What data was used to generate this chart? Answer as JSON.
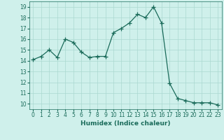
{
  "x": [
    0,
    1,
    2,
    3,
    4,
    5,
    6,
    7,
    8,
    9,
    10,
    11,
    12,
    13,
    14,
    15,
    16,
    17,
    18,
    19,
    20,
    21,
    22,
    23
  ],
  "y": [
    14.1,
    14.4,
    15.0,
    14.3,
    16.0,
    15.7,
    14.8,
    14.3,
    14.4,
    14.4,
    16.6,
    17.0,
    17.5,
    18.3,
    18.0,
    19.0,
    17.5,
    11.9,
    10.5,
    10.3,
    10.1,
    10.1,
    10.1,
    9.9
  ],
  "xlabel": "Humidex (Indice chaleur)",
  "xlim": [
    -0.5,
    23.5
  ],
  "ylim": [
    9.5,
    19.5
  ],
  "yticks": [
    10,
    11,
    12,
    13,
    14,
    15,
    16,
    17,
    18,
    19
  ],
  "xticks": [
    0,
    1,
    2,
    3,
    4,
    5,
    6,
    7,
    8,
    9,
    10,
    11,
    12,
    13,
    14,
    15,
    16,
    17,
    18,
    19,
    20,
    21,
    22,
    23
  ],
  "line_color": "#1a6b5a",
  "marker": "+",
  "bg_color": "#cff0eb",
  "grid_color": "#aad8d0",
  "label_fontsize": 6.5,
  "tick_fontsize": 5.5
}
